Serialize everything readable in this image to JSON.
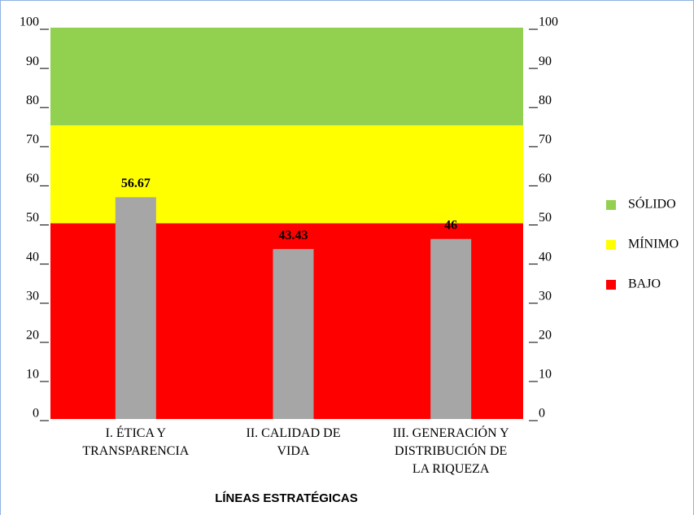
{
  "chart_data": {
    "type": "bar",
    "x_label": "LÍNEAS ESTRATÉGICAS",
    "categories": [
      "I. ÉTICA Y\nTRANSPARENCIA",
      "II. CALIDAD DE\nVIDA",
      "III. GENERACIÓN Y\nDISTRIBUCIÓN DE\nLA RIQUEZA"
    ],
    "values": [
      56.67,
      43.43,
      46
    ],
    "color": "#a6a6a6",
    "ylim": [
      0,
      100
    ],
    "yticks": [
      0,
      10,
      20,
      30,
      40,
      50,
      60,
      70,
      80,
      90,
      100
    ],
    "y2lim": [
      0,
      100
    ],
    "y2ticks": [
      0,
      10,
      20,
      30,
      40,
      50,
      60,
      70,
      80,
      90,
      100
    ],
    "bands": [
      {
        "name": "SÓLIDO",
        "color": "#92d050",
        "from": 75,
        "to": 100
      },
      {
        "name": "MÍNIMO",
        "color": "#ffff00",
        "from": 50,
        "to": 75
      },
      {
        "name": "BAJO",
        "color": "#ff0000",
        "from": 0,
        "to": 50
      }
    ],
    "legend": "right"
  }
}
